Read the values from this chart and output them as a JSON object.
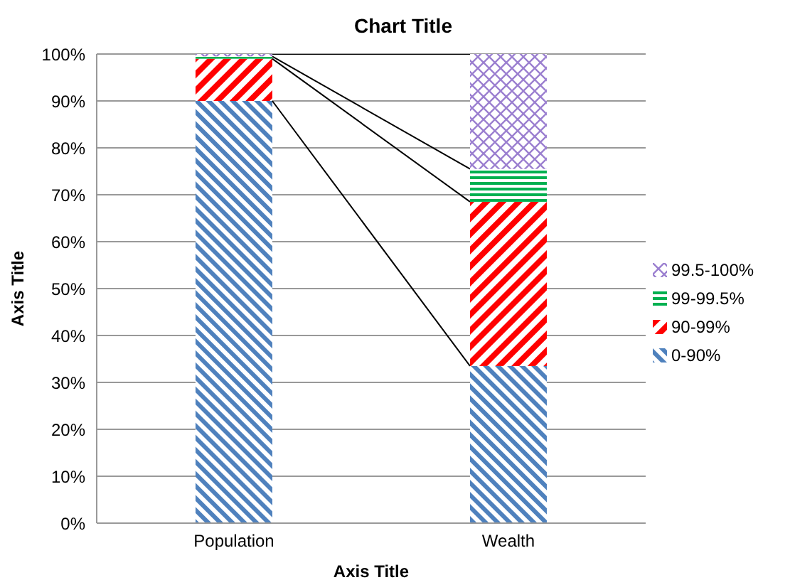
{
  "chart_data": {
    "type": "bar",
    "title": "Chart Title",
    "xlabel": "Axis Title",
    "ylabel": "Axis Title",
    "stacked": true,
    "categories": [
      "Population",
      "Wealth"
    ],
    "series": [
      {
        "name": "0-90%",
        "color": "#4f81bd",
        "values": [
          90,
          33.5
        ]
      },
      {
        "name": "90-99%",
        "color": "#ff0000",
        "values": [
          9,
          35
        ]
      },
      {
        "name": "99-99.5%",
        "color": "#00b050",
        "values": [
          0.5,
          7
        ]
      },
      {
        "name": "99.5-100%",
        "color": "#9b7fd0",
        "values": [
          0.5,
          24.5
        ]
      }
    ],
    "ylim": [
      0,
      100
    ],
    "yticks": [
      {
        "value": 0,
        "label": "0%"
      },
      {
        "value": 10,
        "label": "10%"
      },
      {
        "value": 20,
        "label": "20%"
      },
      {
        "value": 30,
        "label": "30%"
      },
      {
        "value": 40,
        "label": "40%"
      },
      {
        "value": 50,
        "label": "50%"
      },
      {
        "value": 60,
        "label": "60%"
      },
      {
        "value": 70,
        "label": "70%"
      },
      {
        "value": 80,
        "label": "80%"
      },
      {
        "value": 90,
        "label": "90%"
      },
      {
        "value": 100,
        "label": "100%"
      }
    ],
    "grid": "y",
    "legend": "right"
  }
}
